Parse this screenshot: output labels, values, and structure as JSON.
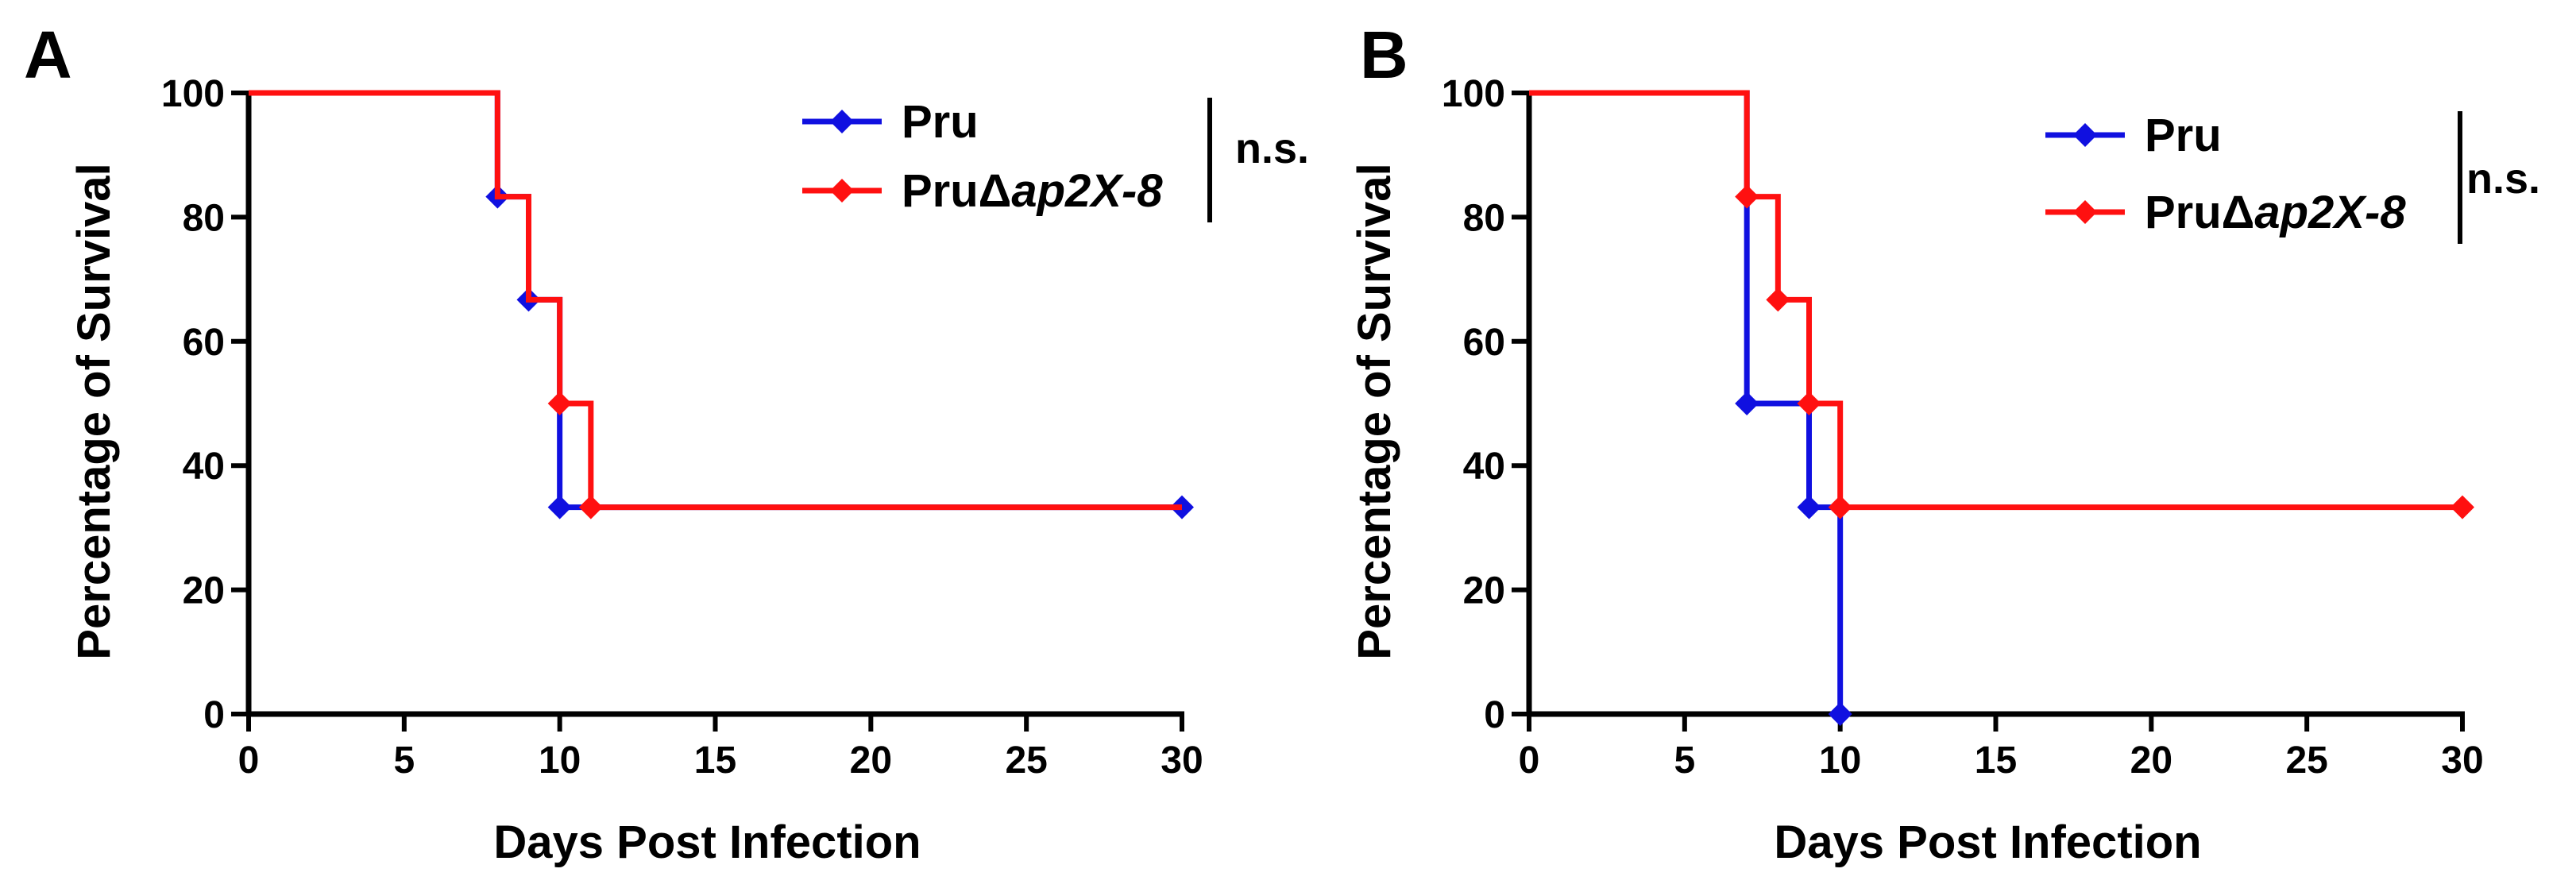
{
  "chart_data": [
    {
      "panel_label": "A",
      "type": "line",
      "step": true,
      "xlabel": "Days Post Infection",
      "ylabel": "Percentage of Survival",
      "xlim": [
        0,
        30
      ],
      "ylim": [
        0,
        100
      ],
      "xticks": [
        0,
        5,
        10,
        15,
        20,
        25,
        30
      ],
      "yticks": [
        0,
        20,
        40,
        60,
        80,
        100
      ],
      "grid": false,
      "legend_position": "top-right",
      "significance_label": "n.s.",
      "series": [
        {
          "name": "Pru",
          "name_prefix": "Pru",
          "name_italic": "",
          "color": "#1010e0",
          "x": [
            0,
            8,
            9,
            10,
            30
          ],
          "y": [
            100,
            83.3,
            66.7,
            33.3,
            33.3
          ],
          "markers": [
            [
              8,
              83.3
            ],
            [
              9,
              66.7
            ],
            [
              10,
              33.3
            ],
            [
              30,
              33.3
            ]
          ]
        },
        {
          "name": "PruΔap2X-8",
          "name_prefix": "PruΔ",
          "name_italic": "ap2X-8",
          "color": "#ff1010",
          "x": [
            0,
            8,
            9,
            10,
            11,
            30
          ],
          "y": [
            100,
            83.3,
            66.7,
            50,
            33.3,
            33.3
          ],
          "markers": [
            [
              10,
              50
            ],
            [
              11,
              33.3
            ]
          ]
        }
      ]
    },
    {
      "panel_label": "B",
      "type": "line",
      "step": true,
      "xlabel": "Days Post Infection",
      "ylabel": "Percentage of Survival",
      "xlim": [
        0,
        30
      ],
      "ylim": [
        0,
        100
      ],
      "xticks": [
        0,
        5,
        10,
        15,
        20,
        25,
        30
      ],
      "yticks": [
        0,
        20,
        40,
        60,
        80,
        100
      ],
      "grid": false,
      "legend_position": "top-right",
      "significance_label": "n.s.",
      "series": [
        {
          "name": "Pru",
          "name_prefix": "Pru",
          "name_italic": "",
          "color": "#1010e0",
          "x": [
            0,
            7,
            9,
            10
          ],
          "y": [
            100,
            50,
            33.3,
            0
          ],
          "markers": [
            [
              7,
              50
            ],
            [
              9,
              33.3
            ],
            [
              10,
              0
            ]
          ]
        },
        {
          "name": "PruΔap2X-8",
          "name_prefix": "PruΔ",
          "name_italic": "ap2X-8",
          "color": "#ff1010",
          "x": [
            0,
            7,
            8,
            9,
            10,
            30
          ],
          "y": [
            100,
            83.3,
            66.7,
            50,
            33.3,
            33.3
          ],
          "markers": [
            [
              7,
              83.3
            ],
            [
              8,
              66.7
            ],
            [
              9,
              50
            ],
            [
              10,
              33.3
            ],
            [
              30,
              33.3
            ]
          ]
        }
      ]
    }
  ]
}
